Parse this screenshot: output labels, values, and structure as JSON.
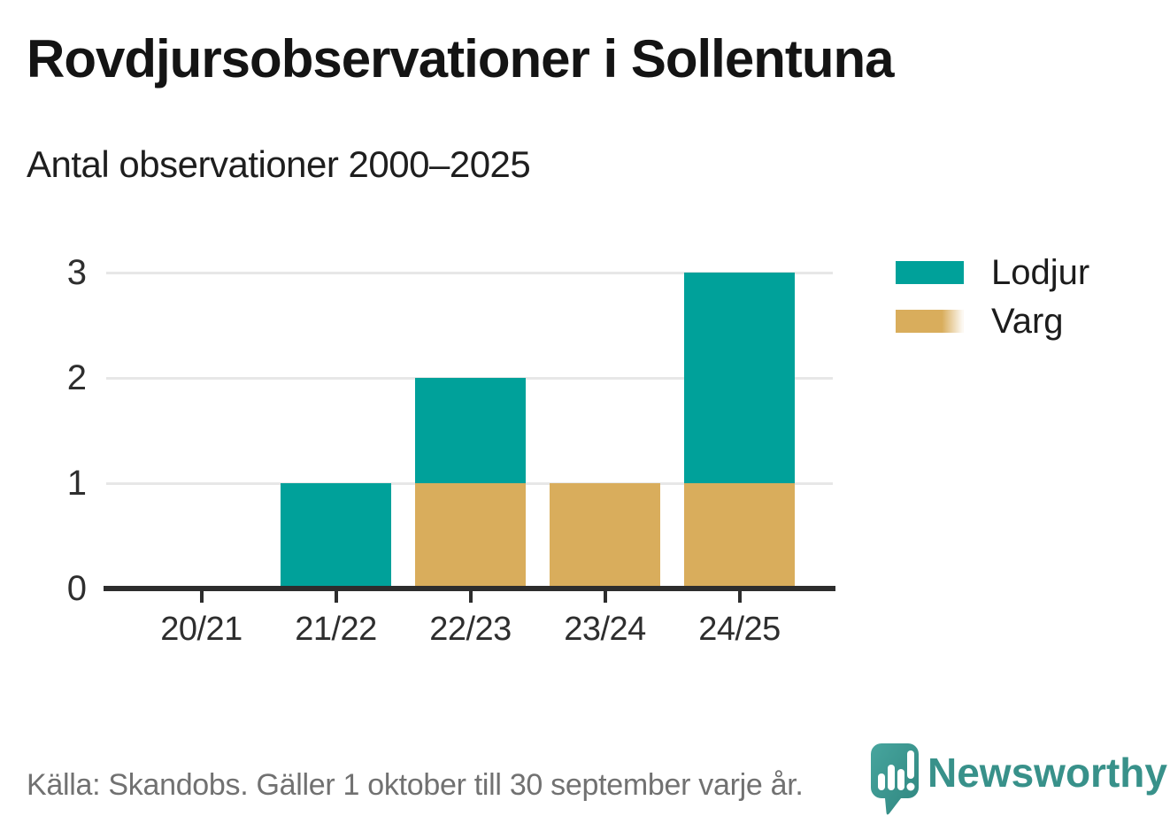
{
  "header": {
    "title": "Rovdjursobservationer i Sollentuna",
    "subtitle": "Antal observationer 2000–2025"
  },
  "chart_data": {
    "type": "bar",
    "stacked": true,
    "title": "Rovdjursobservationer i Sollentuna",
    "subtitle": "Antal observationer 2000–2025",
    "categories": [
      "20/21",
      "21/22",
      "22/23",
      "23/24",
      "24/25"
    ],
    "series": [
      {
        "name": "Varg",
        "color": "#D9AD5C",
        "values": [
          0,
          0,
          1,
          1,
          1
        ]
      },
      {
        "name": "Lodjur",
        "color": "#00A19A",
        "values": [
          0,
          1,
          1,
          0,
          2
        ]
      }
    ],
    "totals": [
      0,
      1,
      2,
      1,
      3
    ],
    "yticks": [
      0,
      1,
      2,
      3
    ],
    "ylim": [
      0,
      3
    ],
    "xlabel": "",
    "ylabel": "",
    "grid": "horizontal",
    "legend_position": "right-top"
  },
  "legend": {
    "items": [
      {
        "label": "Lodjur",
        "color": "#00A19A"
      },
      {
        "label": "Varg",
        "color": "#D9AD5C"
      }
    ]
  },
  "footer": {
    "source": "Källa: Skandobs. Gäller 1 oktober till 30 september varje år.",
    "brand": "Newsworthy"
  },
  "colors": {
    "lodjur": "#00A19A",
    "varg": "#D9AD5C",
    "axis": "#2D2D2D",
    "grid": "#E7E7E7",
    "source_text": "#717171",
    "brand_teal": "#38918A"
  }
}
